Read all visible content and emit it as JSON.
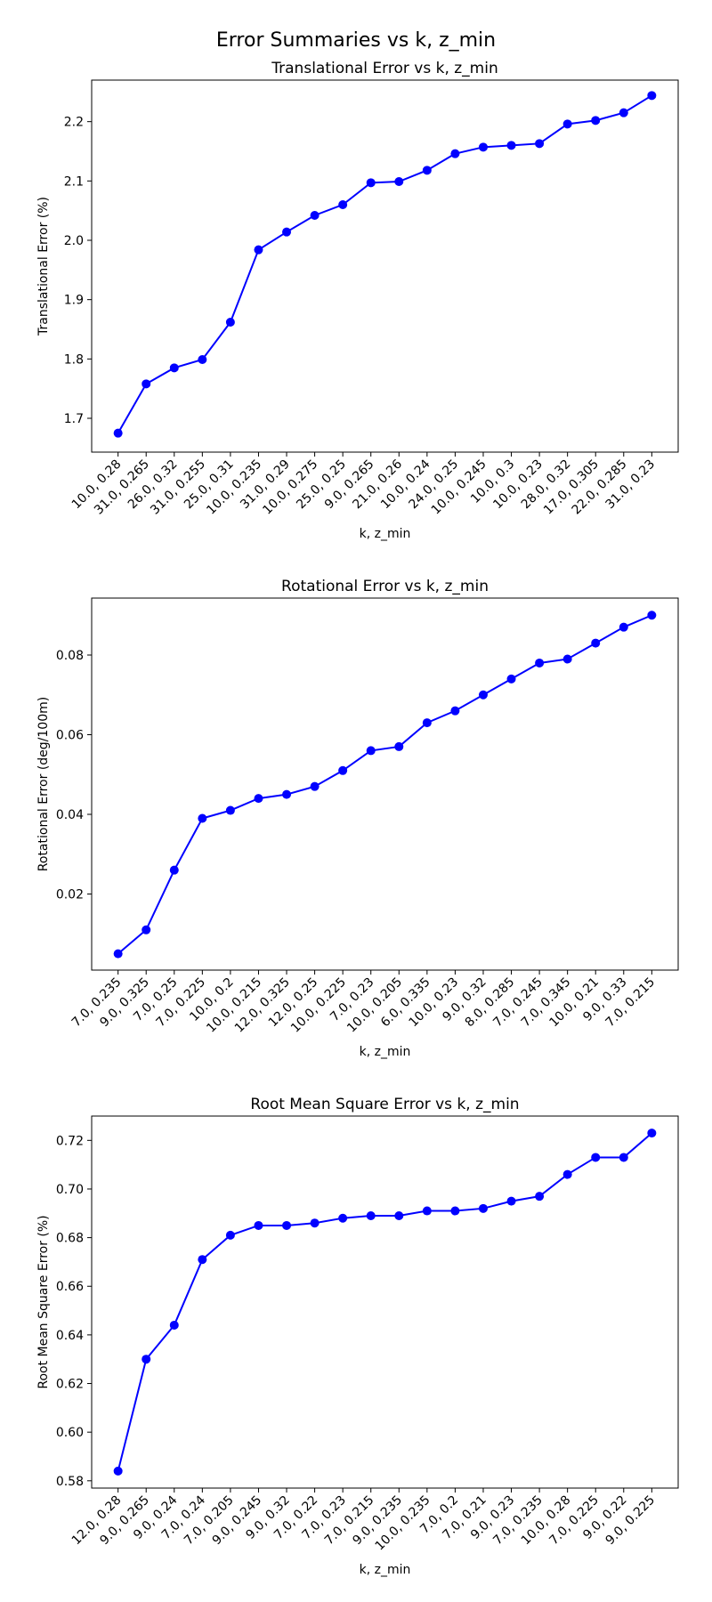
{
  "suptitle": "Error Summaries vs k, z_min",
  "colors": {
    "line": "#0000ff",
    "axes": "#000000",
    "background": "#ffffff"
  },
  "chart_data": [
    {
      "type": "line",
      "title": "Translational Error vs k, z_min",
      "xlabel": "k, z_min",
      "ylabel": "Translational Error (%)",
      "categories": [
        "10.0, 0.28",
        "31.0, 0.265",
        "26.0, 0.32",
        "31.0, 0.255",
        "25.0, 0.31",
        "10.0, 0.235",
        "31.0, 0.29",
        "10.0, 0.275",
        "25.0, 0.25",
        "9.0, 0.265",
        "21.0, 0.26",
        "10.0, 0.24",
        "24.0, 0.25",
        "10.0, 0.245",
        "10.0, 0.3",
        "10.0, 0.23",
        "28.0, 0.32",
        "17.0, 0.305",
        "22.0, 0.285",
        "31.0, 0.23"
      ],
      "values": [
        1.675,
        1.758,
        1.785,
        1.799,
        1.862,
        1.984,
        2.014,
        2.042,
        2.06,
        2.097,
        2.099,
        2.118,
        2.146,
        2.157,
        2.16,
        2.163,
        2.196,
        2.202,
        2.215,
        2.244
      ],
      "ylim": [
        1.643,
        2.27
      ],
      "yticks": [
        1.7,
        1.8,
        1.9,
        2.0,
        2.1,
        2.2
      ],
      "ytick_labels": [
        "1.7",
        "1.8",
        "1.9",
        "2.0",
        "2.1",
        "2.2"
      ],
      "marker": "circle",
      "grid": false
    },
    {
      "type": "line",
      "title": "Rotational Error vs k, z_min",
      "xlabel": "k, z_min",
      "ylabel": "Rotational Error (deg/100m)",
      "categories": [
        "7.0, 0.235",
        "9.0, 0.325",
        "7.0, 0.25",
        "7.0, 0.225",
        "10.0, 0.2",
        "10.0, 0.215",
        "12.0, 0.325",
        "12.0, 0.25",
        "10.0, 0.225",
        "7.0, 0.23",
        "10.0, 0.205",
        "6.0, 0.335",
        "10.0, 0.23",
        "9.0, 0.32",
        "8.0, 0.285",
        "7.0, 0.245",
        "7.0, 0.345",
        "10.0, 0.21",
        "9.0, 0.33",
        "7.0, 0.215"
      ],
      "values": [
        0.005,
        0.011,
        0.026,
        0.039,
        0.041,
        0.044,
        0.045,
        0.047,
        0.051,
        0.056,
        0.057,
        0.063,
        0.066,
        0.07,
        0.074,
        0.078,
        0.079,
        0.083,
        0.087,
        0.09
      ],
      "ylim": [
        0.0009,
        0.0943
      ],
      "yticks": [
        0.02,
        0.04,
        0.06,
        0.08
      ],
      "ytick_labels": [
        "0.02",
        "0.04",
        "0.06",
        "0.08"
      ],
      "marker": "circle",
      "grid": false
    },
    {
      "type": "line",
      "title": "Root Mean Square Error vs k, z_min",
      "xlabel": "k, z_min",
      "ylabel": "Root Mean Square Error (%)",
      "categories": [
        "12.0, 0.28",
        "9.0, 0.265",
        "9.0, 0.24",
        "7.0, 0.24",
        "7.0, 0.205",
        "9.0, 0.245",
        "9.0, 0.32",
        "7.0, 0.22",
        "7.0, 0.23",
        "7.0, 0.215",
        "9.0, 0.235",
        "10.0, 0.235",
        "7.0, 0.2",
        "7.0, 0.21",
        "9.0, 0.23",
        "7.0, 0.235",
        "10.0, 0.28",
        "7.0, 0.225",
        "9.0, 0.22",
        "9.0, 0.225"
      ],
      "values": [
        0.584,
        0.63,
        0.644,
        0.671,
        0.681,
        0.685,
        0.685,
        0.686,
        0.688,
        0.689,
        0.689,
        0.691,
        0.691,
        0.692,
        0.695,
        0.697,
        0.706,
        0.713,
        0.713,
        0.723
      ],
      "ylim": [
        0.577,
        0.73
      ],
      "yticks": [
        0.58,
        0.6,
        0.62,
        0.64,
        0.66,
        0.68,
        0.7,
        0.72
      ],
      "ytick_labels": [
        "0.58",
        "0.60",
        "0.62",
        "0.64",
        "0.66",
        "0.68",
        "0.70",
        "0.72"
      ],
      "marker": "circle",
      "grid": false
    }
  ]
}
